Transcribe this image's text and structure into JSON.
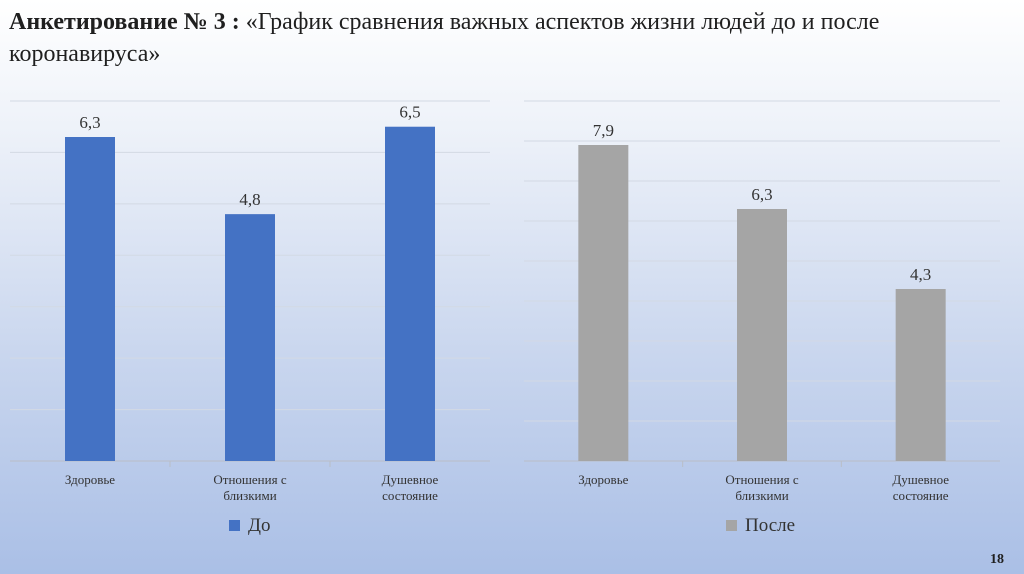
{
  "slide": {
    "title_bold": "Анкетирование № 3 :",
    "title_rest": " «График сравнения важных аспектов жизни людей до и после коронавируса»",
    "page_number": "18"
  },
  "chart_data": [
    {
      "type": "bar",
      "categories": [
        "Здоровье",
        "Отношения с близкими",
        "Душевное состояние"
      ],
      "series": [
        {
          "name": "До",
          "values": [
            6.3,
            4.8,
            6.5
          ],
          "color": "#4472c4"
        }
      ],
      "data_labels": [
        "6,3",
        "4,8",
        "6,5"
      ],
      "ylim": [
        0,
        7
      ],
      "grid": true,
      "legend": "bottom"
    },
    {
      "type": "bar",
      "categories": [
        "Здоровье",
        "Отношения с близкими",
        "Душевное состояние"
      ],
      "series": [
        {
          "name": "После",
          "values": [
            7.9,
            6.3,
            4.3
          ],
          "color": "#a5a5a5"
        }
      ],
      "data_labels": [
        "7,9",
        "6,3",
        "4,3"
      ],
      "ylim": [
        0,
        9
      ],
      "grid": true,
      "legend": "bottom"
    }
  ]
}
